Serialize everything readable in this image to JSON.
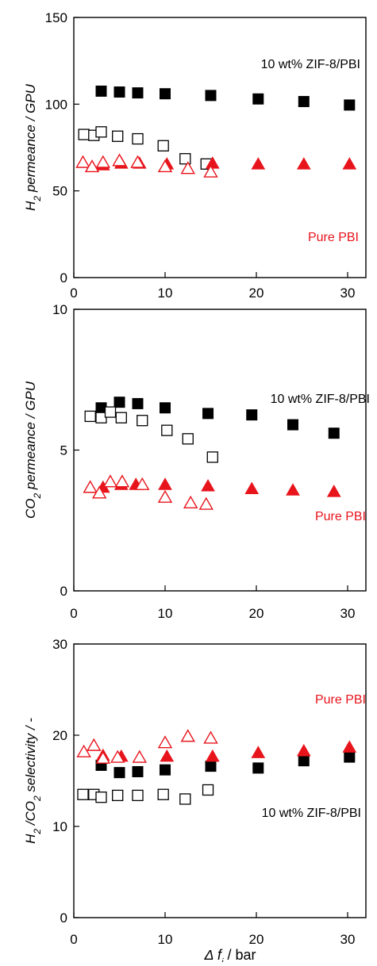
{
  "chart_data": [
    {
      "type": "scatter",
      "ylabel_parts": [
        "H",
        "2",
        " permeance / GPU"
      ],
      "ylim": [
        0,
        150
      ],
      "xlim": [
        0,
        32
      ],
      "yticks": [
        "0",
        "50",
        "100",
        "150"
      ],
      "xticks": [
        "0",
        "10",
        "20",
        "30"
      ],
      "annotations": [
        {
          "text": "10 wt% ZIF-8/PBI",
          "color": "#000000"
        },
        {
          "text": "Pure PBI",
          "color": "#e8141c"
        }
      ],
      "series": [
        {
          "marker": "square-filled",
          "color": "#000000",
          "x": [
            3.0,
            5.0,
            7.0,
            10.0,
            15.0,
            20.2,
            25.2,
            30.2
          ],
          "y": [
            107.5,
            107.0,
            106.5,
            106.0,
            105.0,
            103.0,
            101.5,
            99.5
          ]
        },
        {
          "marker": "square-open",
          "color": "#000000",
          "x": [
            1.1,
            2.2,
            3.0,
            4.8,
            7.0,
            9.8,
            12.2,
            14.5
          ],
          "y": [
            82.5,
            82.0,
            84.0,
            81.5,
            80.0,
            76.0,
            68.5,
            65.5
          ]
        },
        {
          "marker": "triangle-filled",
          "color": "#e8141c",
          "x": [
            3.2,
            5.2,
            7.2,
            10.2,
            15.2,
            20.2,
            25.2,
            30.2
          ],
          "y": [
            64.5,
            65.5,
            65.5,
            65.0,
            65.5,
            65.0,
            65.0,
            65.0
          ]
        },
        {
          "marker": "triangle-open",
          "color": "#e8141c",
          "x": [
            1.0,
            2.0,
            3.2,
            5.0,
            7.0,
            10.0,
            12.5,
            15.0
          ],
          "y": [
            66.0,
            63.5,
            66.0,
            67.0,
            66.0,
            63.5,
            62.5,
            60.5
          ]
        }
      ]
    },
    {
      "type": "scatter",
      "ylabel_parts": [
        "CO",
        "2",
        " permeance / GPU"
      ],
      "ylim": [
        0,
        10
      ],
      "xlim": [
        0,
        32
      ],
      "yticks": [
        "0",
        "5",
        "10"
      ],
      "xticks": [
        "0",
        "10",
        "20",
        "30"
      ],
      "annotations": [
        {
          "text": "10 wt% ZIF-8/PBI",
          "color": "#000000"
        },
        {
          "text": "Pure PBI",
          "color": "#e8141c"
        }
      ],
      "series": [
        {
          "marker": "square-filled",
          "color": "#000000",
          "x": [
            3.0,
            5.0,
            7.0,
            10.0,
            14.7,
            19.5,
            24.0,
            28.5
          ],
          "y": [
            6.5,
            6.7,
            6.65,
            6.5,
            6.3,
            6.25,
            5.9,
            5.6
          ]
        },
        {
          "marker": "square-open",
          "color": "#000000",
          "x": [
            1.8,
            3.0,
            4.0,
            5.2,
            7.5,
            10.2,
            12.5,
            15.2
          ],
          "y": [
            6.2,
            6.15,
            6.35,
            6.15,
            6.05,
            5.7,
            5.4,
            4.75
          ]
        },
        {
          "marker": "triangle-filled",
          "color": "#e8141c",
          "x": [
            3.2,
            5.2,
            6.8,
            10.0,
            14.7,
            19.5,
            24.0,
            28.5
          ],
          "y": [
            3.65,
            3.75,
            3.75,
            3.75,
            3.7,
            3.6,
            3.55,
            3.5
          ]
        },
        {
          "marker": "triangle-open",
          "color": "#e8141c",
          "x": [
            1.8,
            2.8,
            4.0,
            5.3,
            7.5,
            10.0,
            12.8,
            14.5
          ],
          "y": [
            3.65,
            3.45,
            3.85,
            3.85,
            3.75,
            3.3,
            3.1,
            3.05
          ]
        }
      ]
    },
    {
      "type": "scatter",
      "ylabel_parts": [
        "H",
        "2",
        " /CO",
        "2",
        " selectivity / -"
      ],
      "ylim": [
        0,
        30
      ],
      "xlim": [
        0,
        32
      ],
      "yticks": [
        "0",
        "10",
        "20",
        "30"
      ],
      "xticks": [
        "0",
        "10",
        "20",
        "30"
      ],
      "xlabel_parts": [
        "Δ f",
        "i",
        " / bar"
      ],
      "annotations": [
        {
          "text": "Pure PBI",
          "color": "#e8141c"
        },
        {
          "text": "10 wt% ZIF-8/PBI",
          "color": "#000000"
        }
      ],
      "series": [
        {
          "marker": "square-filled",
          "color": "#000000",
          "x": [
            3.0,
            5.0,
            7.0,
            10.0,
            15.0,
            20.2,
            25.2,
            30.2
          ],
          "y": [
            16.7,
            15.9,
            16.0,
            16.2,
            16.6,
            16.4,
            17.2,
            17.6
          ]
        },
        {
          "marker": "square-open",
          "color": "#000000",
          "x": [
            1.0,
            2.2,
            3.0,
            4.8,
            7.0,
            9.8,
            12.2,
            14.7
          ],
          "y": [
            13.5,
            13.5,
            13.2,
            13.4,
            13.4,
            13.5,
            13.0,
            14.0
          ]
        },
        {
          "marker": "triangle-filled",
          "color": "#e8141c",
          "x": [
            3.2,
            5.2,
            7.2,
            10.2,
            15.2,
            20.2,
            25.2,
            30.2
          ],
          "y": [
            17.7,
            17.6,
            17.5,
            17.6,
            17.6,
            18.0,
            18.2,
            18.6
          ]
        },
        {
          "marker": "triangle-open",
          "color": "#e8141c",
          "x": [
            1.1,
            2.2,
            3.2,
            4.8,
            7.2,
            10.0,
            12.5,
            15.0
          ],
          "y": [
            18.1,
            18.8,
            17.4,
            17.5,
            17.5,
            19.1,
            19.8,
            19.6
          ]
        }
      ]
    }
  ]
}
